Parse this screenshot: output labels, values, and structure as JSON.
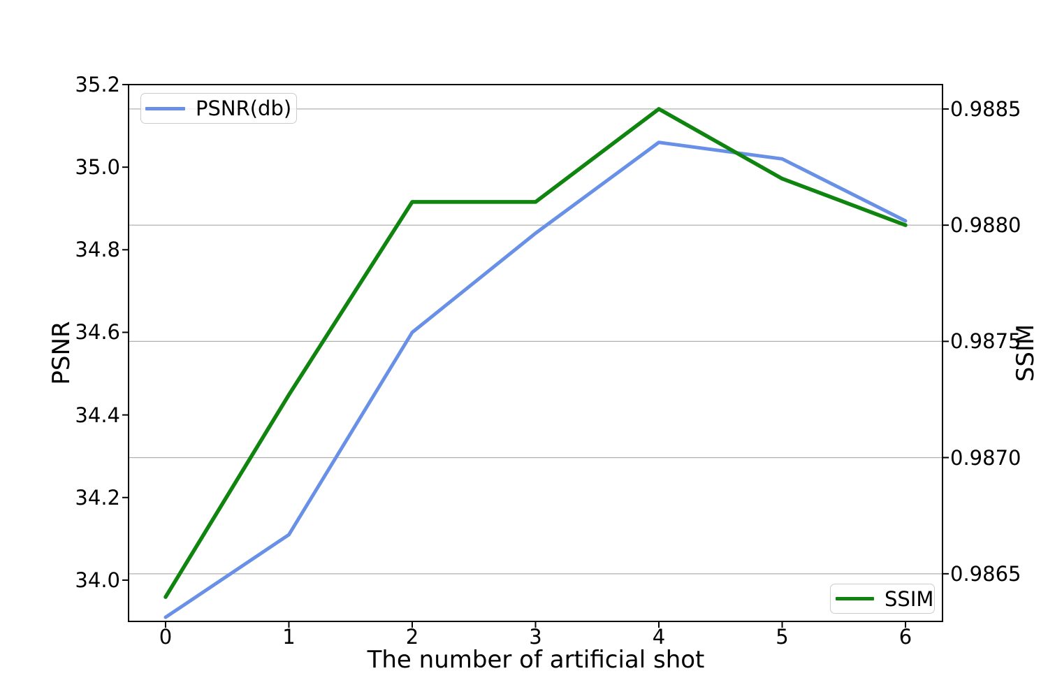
{
  "chart_data": {
    "type": "line",
    "title": "",
    "xlabel": "The number of artificial shot",
    "ylabel_left": "PSNR",
    "ylabel_right": "SSIM",
    "x": [
      0,
      1,
      2,
      3,
      4,
      5,
      6
    ],
    "series": [
      {
        "name": "PSNR(db)",
        "axis": "left",
        "color": "#6990e7",
        "values": [
          33.91,
          34.11,
          34.6,
          34.84,
          35.06,
          35.02,
          34.87
        ]
      },
      {
        "name": "SSIM",
        "axis": "right",
        "color": "#0f840f",
        "values": [
          0.9864,
          0.98727,
          0.9881,
          0.9881,
          0.9885,
          0.9882,
          0.988
        ]
      }
    ],
    "xlim": [
      -0.3,
      6.3
    ],
    "ylim_left": [
      33.9,
      35.2
    ],
    "ylim_right": [
      0.986295,
      0.988605
    ],
    "x_ticks": [
      "0",
      "1",
      "2",
      "3",
      "4",
      "5",
      "6"
    ],
    "y_ticks_left": [
      "35.2",
      "35.0",
      "34.8",
      "34.6",
      "34.4",
      "34.2",
      "34.0"
    ],
    "y_ticks_right": [
      "0.9885",
      "0.9880",
      "0.9875",
      "0.9870",
      "0.9865"
    ],
    "grid": "horizontal gridlines at right-axis (SSIM) ticks",
    "grid_color": "#b0b0b0",
    "spine_color": "#000000",
    "background": "#ffffff",
    "legend_left": {
      "label": "PSNR(db)",
      "position": "upper left"
    },
    "legend_right": {
      "label": "SSIM",
      "position": "lower right"
    }
  }
}
